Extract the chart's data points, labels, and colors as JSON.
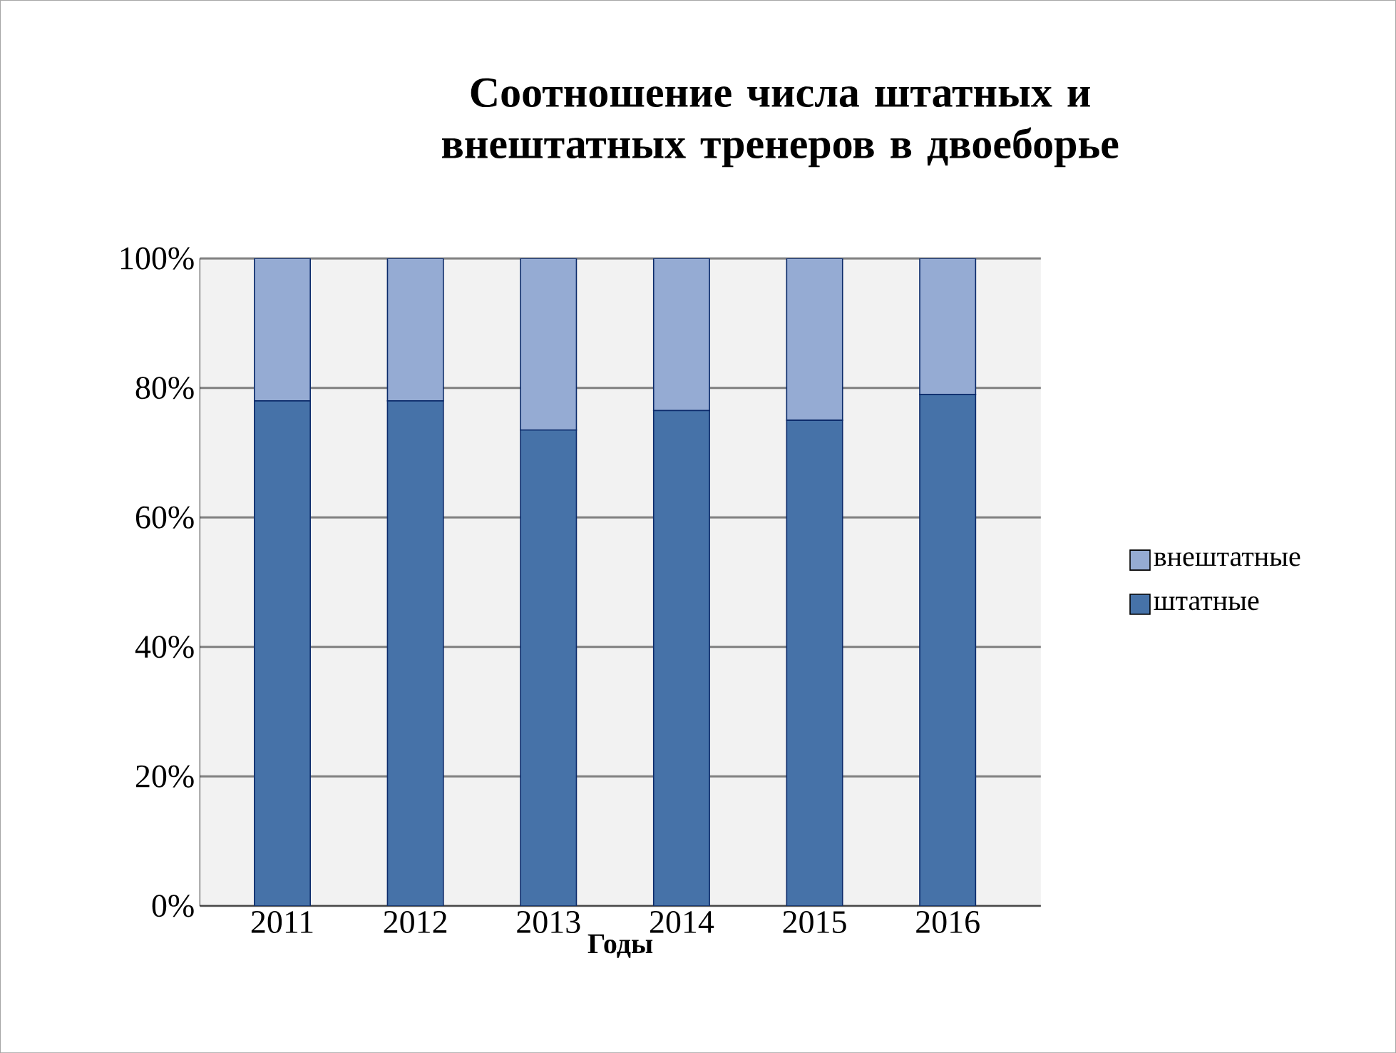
{
  "chart_data": {
    "type": "bar",
    "title": "Соотношение числа штатных и внештатных тренеров в двоеборье",
    "xlabel": "Годы",
    "categories": [
      "2011",
      "2012",
      "2013",
      "2014",
      "2015",
      "2016"
    ],
    "stacked": true,
    "series": [
      {
        "name": "штатные",
        "color": "#4672a8",
        "values": [
          78,
          78,
          73.5,
          76.5,
          75,
          79
        ]
      },
      {
        "name": "внештатные",
        "color": "#95abd3",
        "values": [
          22,
          22,
          26.5,
          23.5,
          25,
          21
        ]
      }
    ],
    "ylim": [
      0,
      100
    ],
    "yticks": [
      {
        "value": 0,
        "label": "0%"
      },
      {
        "value": 20,
        "label": "20%"
      },
      {
        "value": 40,
        "label": "40%"
      },
      {
        "value": 60,
        "label": "60%"
      },
      {
        "value": 80,
        "label": "80%"
      },
      {
        "value": 100,
        "label": "100%"
      }
    ],
    "grid": "y",
    "legend": "right"
  }
}
